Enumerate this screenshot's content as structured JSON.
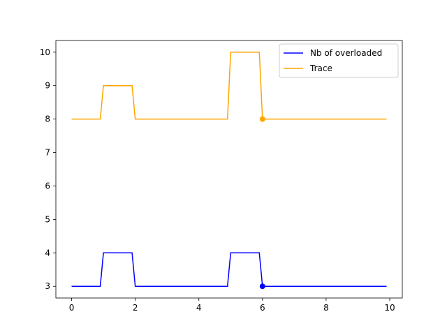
{
  "chart_data": {
    "type": "line",
    "title": "",
    "xlabel": "",
    "ylabel": "",
    "xlim": [
      -0.495,
      10.395
    ],
    "ylim": [
      2.65,
      10.35
    ],
    "xticks": [
      0,
      2,
      4,
      6,
      8,
      10
    ],
    "yticks": [
      3,
      4,
      5,
      6,
      7,
      8,
      9,
      10
    ],
    "grid": false,
    "legend_position": "top-right",
    "series": [
      {
        "name": "Nb of overloaded",
        "color": "#0000ff",
        "x": [
          0.0,
          0.9,
          1.0,
          1.9,
          2.0,
          4.9,
          5.0,
          5.9,
          6.0,
          9.9
        ],
        "y": [
          3,
          3,
          4,
          4,
          3,
          3,
          4,
          4,
          3,
          3
        ],
        "marker": {
          "x": 6.0,
          "y": 3
        }
      },
      {
        "name": "Trace",
        "color": "#ffa500",
        "x": [
          0.0,
          0.9,
          1.0,
          1.9,
          2.0,
          4.9,
          5.0,
          5.9,
          6.0,
          9.9
        ],
        "y": [
          8,
          8,
          9,
          9,
          8,
          8,
          10,
          10,
          8,
          8
        ],
        "marker": {
          "x": 6.0,
          "y": 8
        }
      }
    ]
  }
}
